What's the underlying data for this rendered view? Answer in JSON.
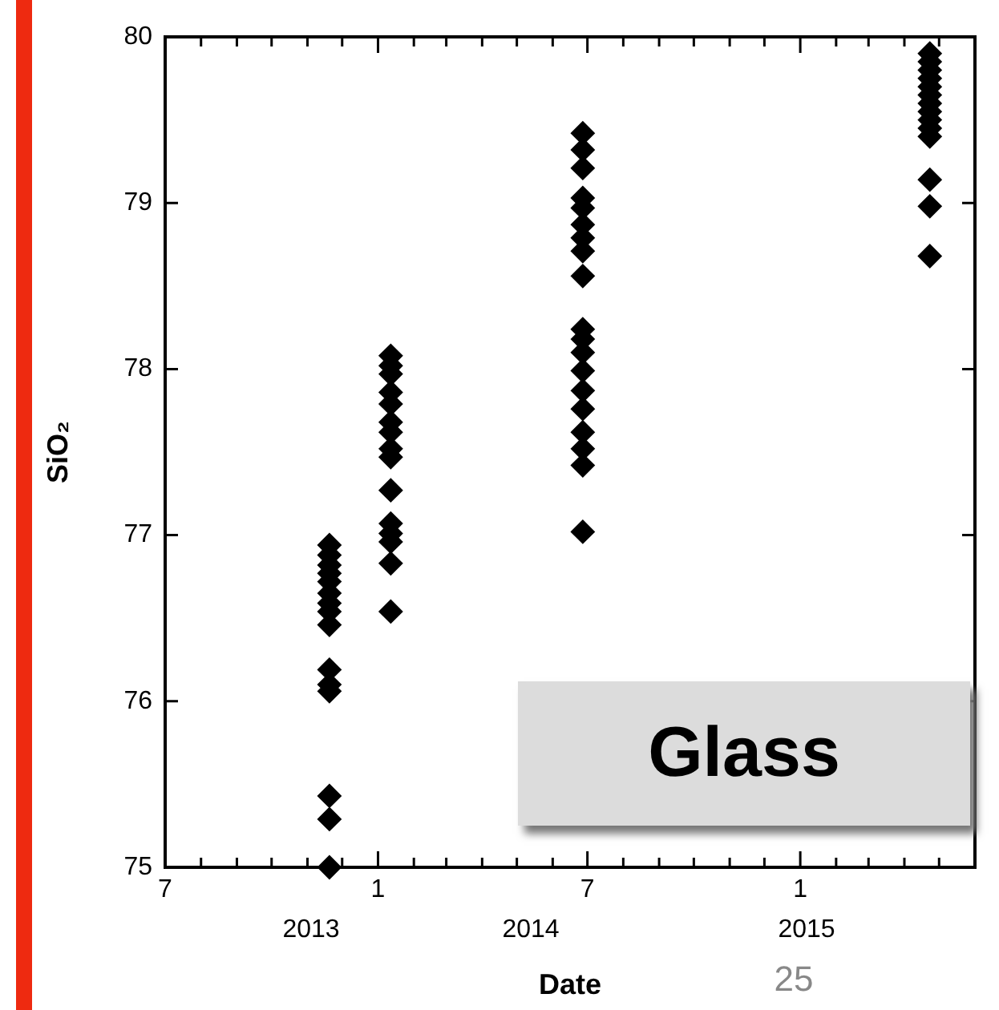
{
  "chart_data": {
    "type": "scatter",
    "xlabel": "Date",
    "ylabel": "SiO₂",
    "marker": "diamond",
    "grid": false,
    "legend": false,
    "series": [
      {
        "color": "#000000",
        "x": [
          "2013-11-20",
          "2013-11-20",
          "2013-11-20",
          "2013-11-20",
          "2013-11-20",
          "2013-11-20",
          "2013-11-20",
          "2013-11-20",
          "2013-11-20",
          "2013-11-20",
          "2013-11-20",
          "2013-11-20",
          "2013-11-20",
          "2013-11-20",
          "2013-11-20",
          "2014-01-12",
          "2014-01-12",
          "2014-01-12",
          "2014-01-12",
          "2014-01-12",
          "2014-01-12",
          "2014-01-12",
          "2014-01-12",
          "2014-01-12",
          "2014-01-12",
          "2014-01-12",
          "2014-01-12",
          "2014-01-12",
          "2014-01-12",
          "2014-01-12",
          "2014-06-27",
          "2014-06-27",
          "2014-06-27",
          "2014-06-27",
          "2014-06-27",
          "2014-06-27",
          "2014-06-27",
          "2014-06-27",
          "2014-06-27",
          "2014-06-27",
          "2014-06-27",
          "2014-06-27",
          "2014-06-27",
          "2014-06-27",
          "2014-06-27",
          "2014-06-27",
          "2014-06-27",
          "2014-06-27",
          "2014-06-27",
          "2015-04-23",
          "2015-04-23",
          "2015-04-23",
          "2015-04-23",
          "2015-04-23",
          "2015-04-23",
          "2015-04-23",
          "2015-04-23",
          "2015-04-23",
          "2015-04-23",
          "2015-04-23",
          "2015-04-23",
          "2015-04-23",
          "2015-04-23"
        ],
        "values": [
          76.94,
          76.88,
          76.82,
          76.77,
          76.72,
          76.65,
          76.59,
          76.54,
          76.46,
          76.19,
          76.1,
          76.06,
          75.43,
          75.29,
          75.0,
          78.08,
          78.02,
          77.97,
          77.86,
          77.79,
          77.68,
          77.62,
          77.52,
          77.47,
          77.27,
          77.07,
          77.01,
          76.96,
          76.83,
          76.54,
          79.42,
          79.32,
          79.21,
          79.03,
          78.97,
          78.87,
          78.79,
          78.71,
          78.56,
          78.24,
          78.18,
          78.1,
          77.99,
          77.87,
          77.76,
          77.62,
          77.52,
          77.42,
          77.02,
          79.9,
          79.85,
          79.8,
          79.75,
          79.7,
          79.65,
          79.6,
          79.55,
          79.5,
          79.45,
          79.4,
          79.14,
          78.98,
          78.68
        ]
      }
    ],
    "xlim": [
      "2013-07",
      "2015-06"
    ],
    "xticks": [
      {
        "value": "2013-07",
        "label": "7"
      },
      {
        "value": "2013-08",
        "label": null
      },
      {
        "value": "2013-09",
        "label": null
      },
      {
        "value": "2013-10",
        "label": null
      },
      {
        "value": "2013-11",
        "label": null
      },
      {
        "value": "2013-12",
        "label": null
      },
      {
        "value": "2014-01",
        "label": "1"
      },
      {
        "value": "2014-02",
        "label": null
      },
      {
        "value": "2014-03",
        "label": null
      },
      {
        "value": "2014-04",
        "label": null
      },
      {
        "value": "2014-05",
        "label": null
      },
      {
        "value": "2014-06",
        "label": null
      },
      {
        "value": "2014-07",
        "label": "7"
      },
      {
        "value": "2014-08",
        "label": null
      },
      {
        "value": "2014-09",
        "label": null
      },
      {
        "value": "2014-10",
        "label": null
      },
      {
        "value": "2014-11",
        "label": null
      },
      {
        "value": "2014-12",
        "label": null
      },
      {
        "value": "2015-01",
        "label": "1"
      },
      {
        "value": "2015-02",
        "label": null
      },
      {
        "value": "2015-03",
        "label": null
      },
      {
        "value": "2015-04",
        "label": null
      },
      {
        "value": "2015-05",
        "label": null
      },
      {
        "value": "2015-06",
        "label": null
      }
    ],
    "ylim": [
      75,
      80
    ],
    "yticks": [
      75,
      76,
      77,
      78,
      79,
      80
    ],
    "annotations": [
      "Glass",
      "25",
      "2013",
      "2014",
      "2015"
    ]
  }
}
